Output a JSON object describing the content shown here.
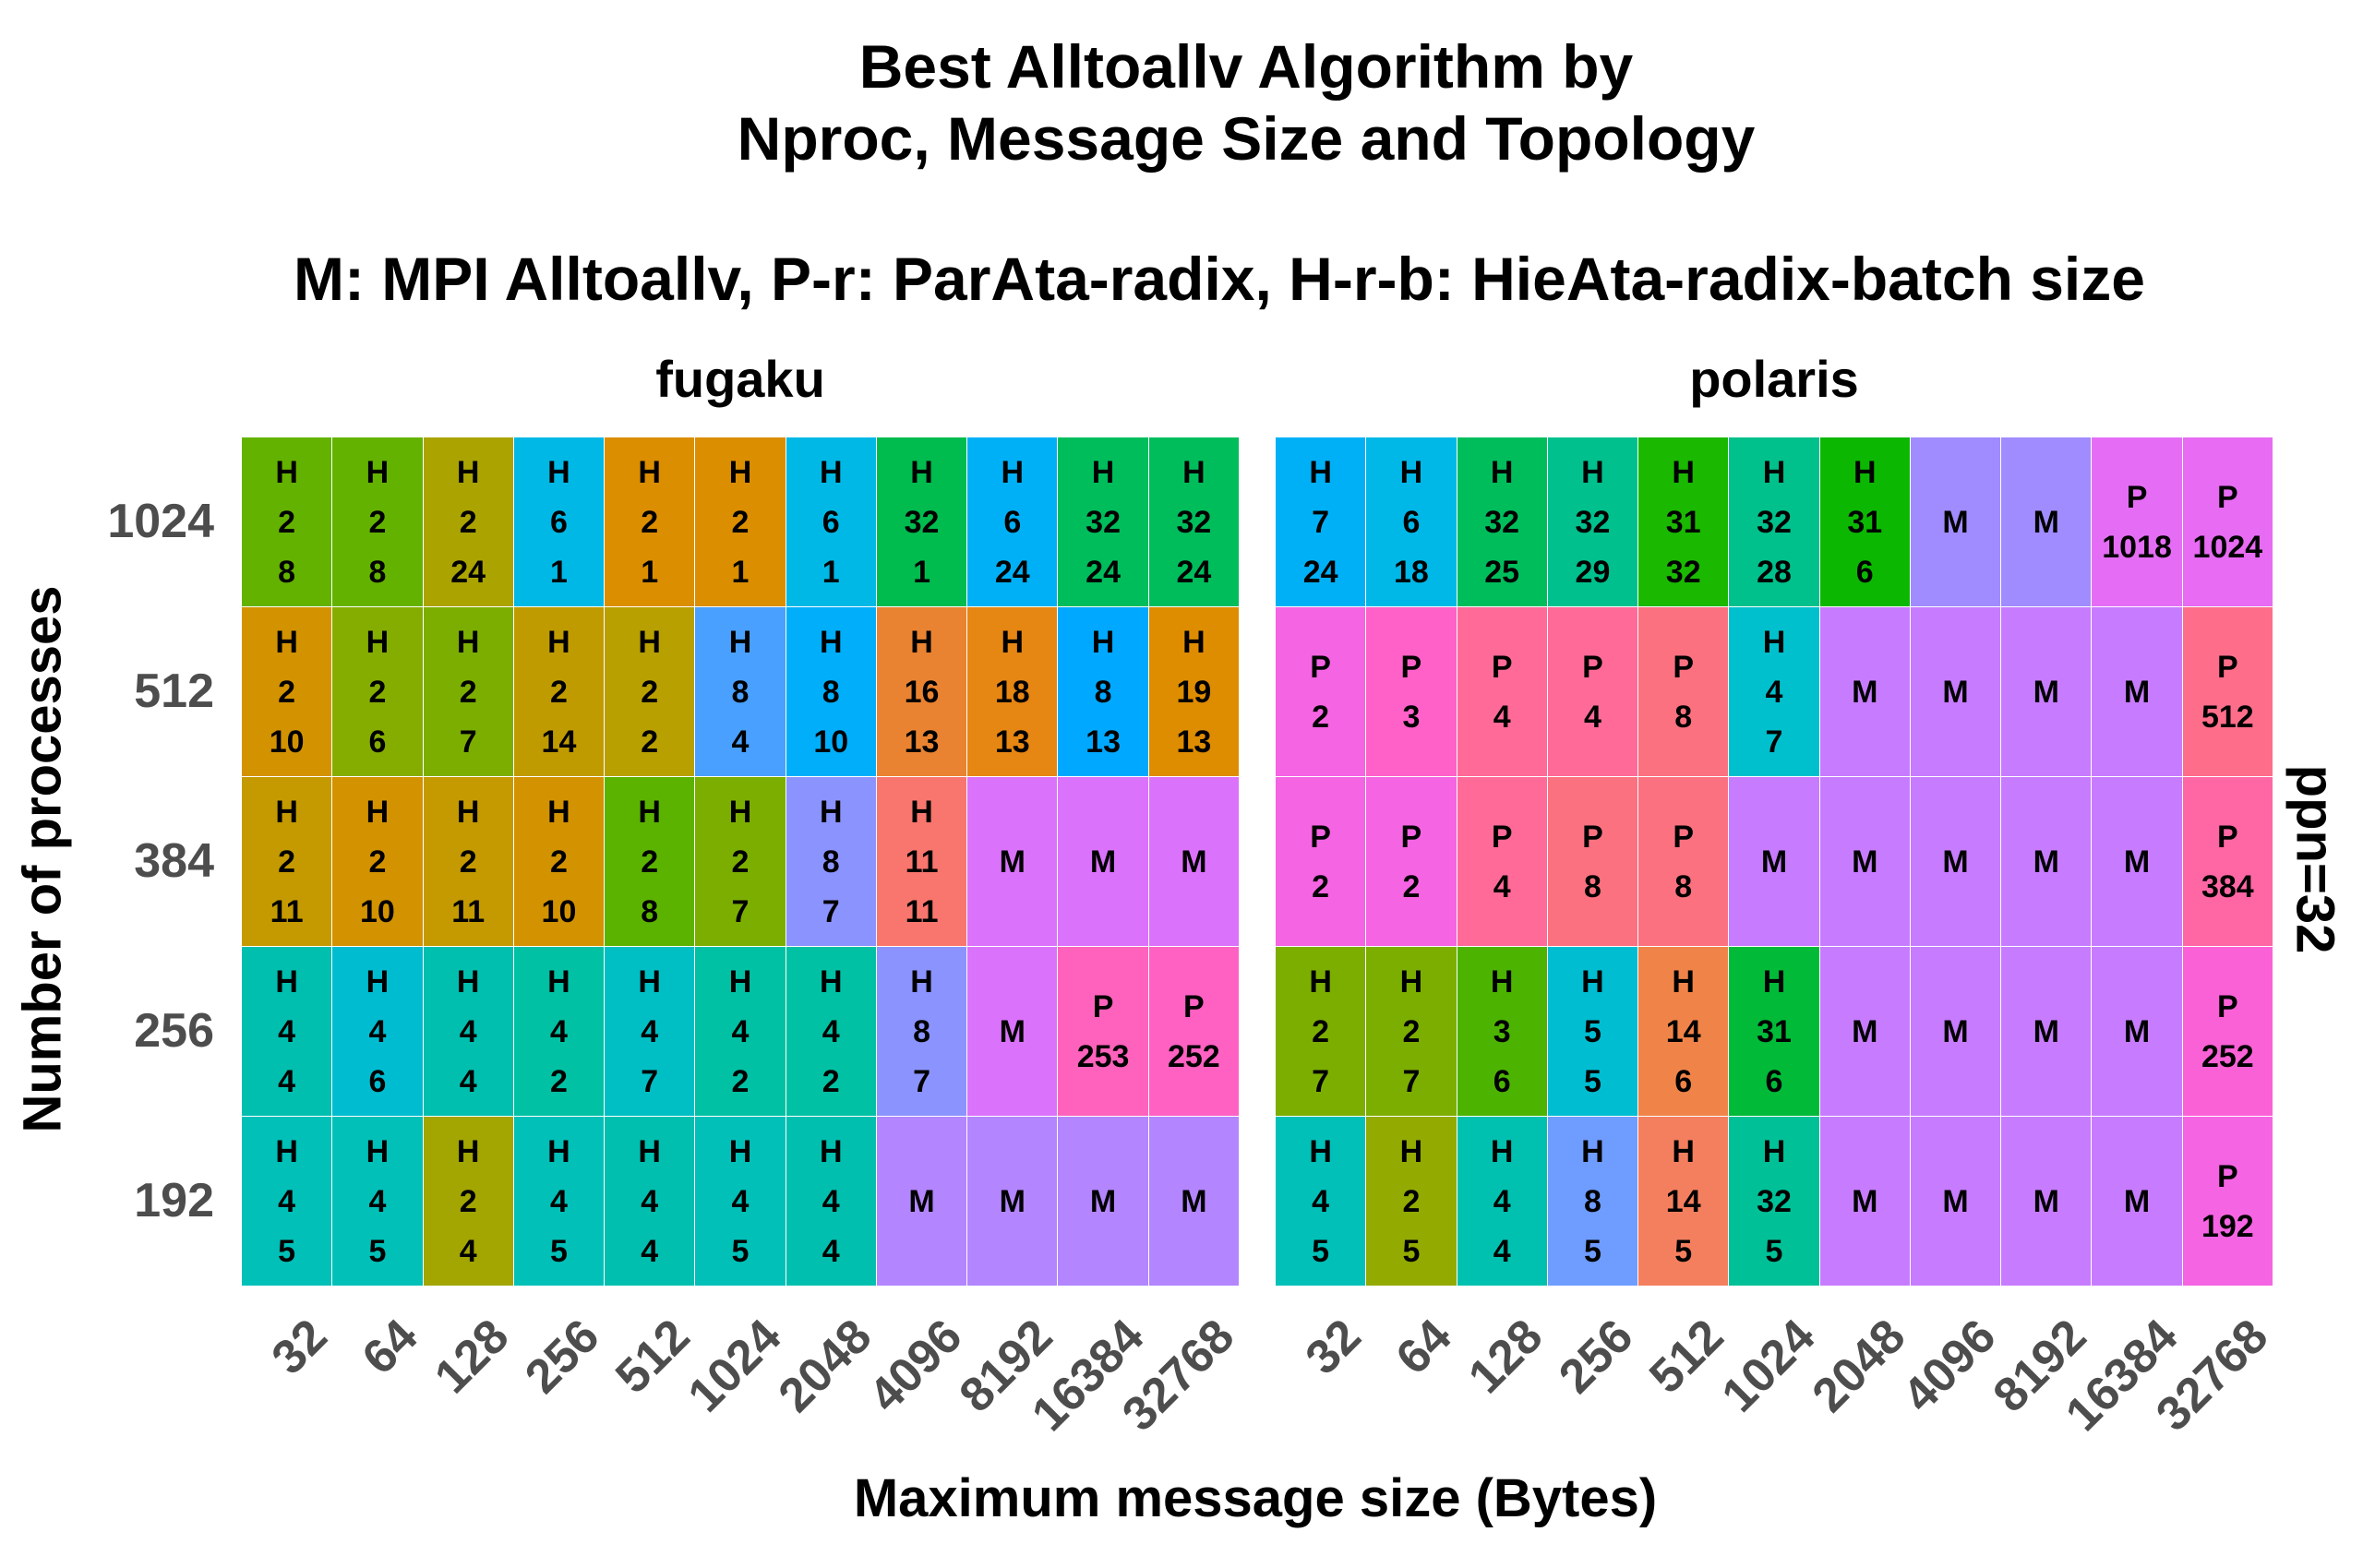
{
  "chart_data": {
    "type": "heatmap",
    "title": [
      "Best Alltoallv Algorithm by",
      "Nproc, Message Size and Topology"
    ],
    "subtitle": "M: MPI Alltoallv, P-r: ParAta-radix, H-r-b: HieAta-radix-batch size",
    "xlabel": "Maximum message size (Bytes)",
    "ylabel": "Number of processes",
    "facet_right": "ppn=32",
    "x_categories": [
      "32",
      "64",
      "128",
      "256",
      "512",
      "1024",
      "2048",
      "4096",
      "8192",
      "16384",
      "32768"
    ],
    "y_categories": [
      "1024",
      "512",
      "384",
      "256",
      "192"
    ],
    "panels": [
      {
        "name": "fugaku",
        "rows": [
          {
            "nproc": "1024",
            "cells": [
              [
                "H",
                "2",
                "8",
                "#64b200"
              ],
              [
                "H",
                "2",
                "8",
                "#64b200"
              ],
              [
                "H",
                "2",
                "24",
                "#aba300"
              ],
              [
                "H",
                "6",
                "1",
                "#00b8e5"
              ],
              [
                "H",
                "2",
                "1",
                "#db8e00"
              ],
              [
                "H",
                "2",
                "1",
                "#db8e00"
              ],
              [
                "H",
                "6",
                "1",
                "#00b8e5"
              ],
              [
                "H",
                "32",
                "1",
                "#00bb4e"
              ],
              [
                "H",
                "6",
                "24",
                "#00b0f6"
              ],
              [
                "H",
                "32",
                "24",
                "#00bd5c"
              ],
              [
                "H",
                "32",
                "24",
                "#00bd5c"
              ]
            ]
          },
          {
            "nproc": "512",
            "cells": [
              [
                "H",
                "2",
                "10",
                "#d39200"
              ],
              [
                "H",
                "2",
                "6",
                "#85ad00"
              ],
              [
                "H",
                "2",
                "7",
                "#7cae00"
              ],
              [
                "H",
                "2",
                "14",
                "#c09b00"
              ],
              [
                "H",
                "2",
                "2",
                "#b8a000"
              ],
              [
                "H",
                "8",
                "4",
                "#49a0ff"
              ],
              [
                "H",
                "8",
                "10",
                "#00aef9"
              ],
              [
                "H",
                "16",
                "13",
                "#ea8331"
              ],
              [
                "H",
                "18",
                "13",
                "#e68613"
              ],
              [
                "H",
                "8",
                "13",
                "#00a9ff"
              ],
              [
                "H",
                "19",
                "13",
                "#de8c00"
              ]
            ]
          },
          {
            "nproc": "384",
            "cells": [
              [
                "H",
                "2",
                "11",
                "#c49a00"
              ],
              [
                "H",
                "2",
                "10",
                "#d39200"
              ],
              [
                "H",
                "2",
                "11",
                "#c49a00"
              ],
              [
                "H",
                "2",
                "10",
                "#d39200"
              ],
              [
                "H",
                "2",
                "8",
                "#5bb300"
              ],
              [
                "H",
                "2",
                "7",
                "#7cae00"
              ],
              [
                "H",
                "8",
                "7",
                "#8b93ff"
              ],
              [
                "H",
                "11",
                "11",
                "#f8766d"
              ],
              [
                "M",
                "#db72fb"
              ],
              [
                "M",
                "#db72fb"
              ],
              [
                "M",
                "#db72fb"
              ]
            ]
          },
          {
            "nproc": "256",
            "cells": [
              [
                "H",
                "4",
                "4",
                "#00bfaf"
              ],
              [
                "H",
                "4",
                "6",
                "#00bcd0"
              ],
              [
                "H",
                "4",
                "4",
                "#00bfaf"
              ],
              [
                "H",
                "4",
                "2",
                "#00c1a3"
              ],
              [
                "H",
                "4",
                "7",
                "#00bfc4"
              ],
              [
                "H",
                "4",
                "2",
                "#00c1a3"
              ],
              [
                "H",
                "4",
                "2",
                "#00c1a3"
              ],
              [
                "H",
                "8",
                "7",
                "#8b93ff"
              ],
              [
                "M",
                "#db72fb"
              ],
              [
                "P",
                "253",
                "#ff62bc"
              ],
              [
                "P",
                "252",
                "#ff61c3"
              ]
            ]
          },
          {
            "nproc": "192",
            "cells": [
              [
                "H",
                "4",
                "5",
                "#00c0b8"
              ],
              [
                "H",
                "4",
                "5",
                "#00c0b8"
              ],
              [
                "H",
                "2",
                "4",
                "#a3a500"
              ],
              [
                "H",
                "4",
                "5",
                "#00c0b8"
              ],
              [
                "H",
                "4",
                "4",
                "#00bfaf"
              ],
              [
                "H",
                "4",
                "5",
                "#00c0b8"
              ],
              [
                "H",
                "4",
                "4",
                "#00bfaf"
              ],
              [
                "M",
                "#b385ff"
              ],
              [
                "M",
                "#b385ff"
              ],
              [
                "M",
                "#b385ff"
              ],
              [
                "M",
                "#b385ff"
              ]
            ]
          }
        ]
      },
      {
        "name": "polaris",
        "rows": [
          {
            "nproc": "1024",
            "cells": [
              [
                "H",
                "7",
                "24",
                "#00b0f6"
              ],
              [
                "H",
                "6",
                "18",
                "#00b8e7"
              ],
              [
                "H",
                "32",
                "25",
                "#00bd5c"
              ],
              [
                "H",
                "32",
                "29",
                "#00c08d"
              ],
              [
                "H",
                "31",
                "32",
                "#1bb800"
              ],
              [
                "H",
                "32",
                "28",
                "#00c08b"
              ],
              [
                "H",
                "31",
                "6",
                "#0cb702"
              ],
              [
                "M",
                "#a08cff"
              ],
              [
                "M",
                "#a08cff"
              ],
              [
                "P",
                "1018",
                "#e56df5"
              ],
              [
                "P",
                "1024",
                "#e76bf3"
              ]
            ]
          },
          {
            "nproc": "512",
            "cells": [
              [
                "P",
                "2",
                "#f564e3"
              ],
              [
                "P",
                "3",
                "#ff61c9"
              ],
              [
                "P",
                "4",
                "#ff6a98"
              ],
              [
                "P",
                "4",
                "#ff6a98"
              ],
              [
                "P",
                "8",
                "#fc717f"
              ],
              [
                "H",
                "4",
                "7",
                "#00c0cd"
              ],
              [
                "M",
                "#c77cff"
              ],
              [
                "M",
                "#c77cff"
              ],
              [
                "M",
                "#c77cff"
              ],
              [
                "M",
                "#c77cff"
              ],
              [
                "P",
                "512",
                "#fe6e8a"
              ]
            ]
          },
          {
            "nproc": "384",
            "cells": [
              [
                "P",
                "2",
                "#f564e3"
              ],
              [
                "P",
                "2",
                "#f564e3"
              ],
              [
                "P",
                "4",
                "#ff6a98"
              ],
              [
                "P",
                "8",
                "#fc717f"
              ],
              [
                "P",
                "8",
                "#fc717f"
              ],
              [
                "M",
                "#c77cff"
              ],
              [
                "M",
                "#c77cff"
              ],
              [
                "M",
                "#c77cff"
              ],
              [
                "M",
                "#c77cff"
              ],
              [
                "M",
                "#c77cff"
              ],
              [
                "P",
                "384",
                "#ff67a4"
              ]
            ]
          },
          {
            "nproc": "256",
            "cells": [
              [
                "H",
                "2",
                "7",
                "#7cae00"
              ],
              [
                "H",
                "2",
                "7",
                "#7cae00"
              ],
              [
                "H",
                "3",
                "6",
                "#4cb400"
              ],
              [
                "H",
                "5",
                "5",
                "#00bdd2"
              ],
              [
                "H",
                "14",
                "6",
                "#f08448"
              ],
              [
                "H",
                "31",
                "6",
                "#00ba38"
              ],
              [
                "M",
                "#c77cff"
              ],
              [
                "M",
                "#c77cff"
              ],
              [
                "M",
                "#c77cff"
              ],
              [
                "M",
                "#c77cff"
              ],
              [
                "P",
                "252",
                "#fb61d7"
              ]
            ]
          },
          {
            "nproc": "192",
            "cells": [
              [
                "H",
                "4",
                "5",
                "#00c0b8"
              ],
              [
                "H",
                "2",
                "5",
                "#93aa00"
              ],
              [
                "H",
                "4",
                "4",
                "#00c1af"
              ],
              [
                "H",
                "8",
                "5",
                "#6f9cff"
              ],
              [
                "H",
                "14",
                "5",
                "#f47f5f"
              ],
              [
                "H",
                "32",
                "5",
                "#00c097"
              ],
              [
                "M",
                "#c77cff"
              ],
              [
                "M",
                "#c77cff"
              ],
              [
                "M",
                "#c77cff"
              ],
              [
                "M",
                "#c77cff"
              ],
              [
                "P",
                "192",
                "#f564e3"
              ]
            ]
          }
        ]
      }
    ]
  }
}
